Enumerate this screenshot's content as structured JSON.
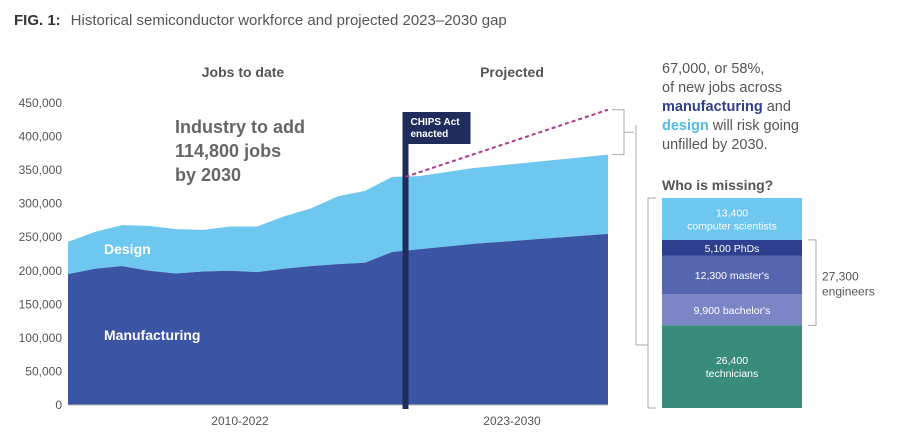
{
  "figure": {
    "label": "FIG. 1:",
    "title": "Historical semiconductor workforce and projected 2023–2030 gap"
  },
  "colors": {
    "manufacturing": "#3b54a4",
    "design": "#6ec7ef",
    "chips_marker": "#1f2d5c",
    "gap_line": "#b03a8a",
    "phds": "#2f3f8f",
    "masters": "#5565b0",
    "bachelors": "#7c86c6",
    "technicians": "#3a8c7a"
  },
  "chart_data": [
    {
      "type": "area",
      "stacked": true,
      "ylim": [
        0,
        450000
      ],
      "yticks": [
        "0",
        "50,000",
        "100,000",
        "150,000",
        "200,000",
        "250,000",
        "300,000",
        "350,000",
        "400,000",
        "450,000"
      ],
      "ytick_values": [
        0,
        50000,
        100000,
        150000,
        200000,
        250000,
        300000,
        350000,
        400000,
        450000
      ],
      "grid": false,
      "section_labels": {
        "historical": "Jobs to date",
        "projected": "Projected"
      },
      "x_labels": {
        "historical": "2010-2022",
        "projected": "2023-2030"
      },
      "x_historical": [
        2010,
        2011,
        2012,
        2013,
        2014,
        2015,
        2016,
        2017,
        2018,
        2019,
        2020,
        2021,
        2022
      ],
      "x_projected": [
        2023,
        2024,
        2025,
        2026,
        2027,
        2028,
        2029,
        2030
      ],
      "series": [
        {
          "name": "Manufacturing",
          "historical_values": [
            195000,
            203000,
            207000,
            200000,
            196000,
            199000,
            200000,
            198000,
            203000,
            207000,
            210000,
            212000,
            228000
          ],
          "projected_values": [
            232000,
            236000,
            240000,
            243000,
            246000,
            249000,
            252000,
            255000
          ]
        },
        {
          "name": "Design",
          "historical_values": [
            48000,
            55000,
            61000,
            67000,
            66000,
            62000,
            66000,
            68000,
            78000,
            86000,
            101000,
            107000,
            112000
          ],
          "projected_values": [
            109000,
            111000,
            113000,
            114000,
            115000,
            116000,
            117000,
            118000
          ]
        }
      ],
      "annotations": {
        "headline": [
          "Industry to add",
          "114,800 jobs",
          "by 2030"
        ],
        "marker_label": [
          "CHIPS Act",
          "enacted"
        ],
        "marker_x": 2022.5,
        "gap_line_end_value": 440000
      }
    },
    {
      "type": "bar",
      "stacked": true,
      "title": "Who is missing?",
      "segments": [
        {
          "value": 13400,
          "label": [
            "13,400",
            "computer scientists"
          ],
          "color_key": "design"
        },
        {
          "value": 5100,
          "label": [
            "5,100 PhDs"
          ],
          "color_key": "phds"
        },
        {
          "value": 12300,
          "label": [
            "12,300 master's"
          ],
          "color_key": "masters"
        },
        {
          "value": 9900,
          "label": [
            "9,900 bachelor's"
          ],
          "color_key": "bachelors"
        },
        {
          "value": 26400,
          "label": [
            "26,400",
            "technicians"
          ],
          "color_key": "technicians"
        }
      ],
      "engineers_bracket": [
        "27,300",
        "engineers"
      ]
    }
  ],
  "callout": {
    "line1": "67,000, or 58%,",
    "line2": "of new jobs across",
    "mfg_word": "manufacturing",
    "and_word": " and",
    "dsg_word": "design",
    "line4_rest": " will risk going",
    "line5": "unfilled by 2030."
  }
}
